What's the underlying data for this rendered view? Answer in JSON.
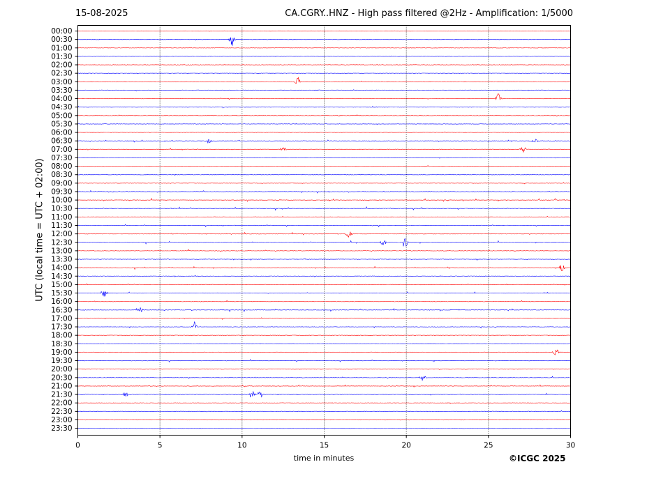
{
  "header": {
    "date": "15-08-2025",
    "title": "CA.CGRY..HNZ - High pass filtered @2Hz - Amplification: 1/5000"
  },
  "footer": {
    "copyright": "©ICGC 2025"
  },
  "chart_data": {
    "type": "line",
    "title": "CA.CGRY..HNZ - High pass filtered @2Hz - Amplification: 1/5000",
    "xlabel": "time in minutes",
    "ylabel": "UTC (local time = UTC + 02:00)",
    "xlim": [
      0,
      30
    ],
    "xticks": [
      "0",
      "5",
      "10",
      "15",
      "20",
      "25",
      "30"
    ],
    "x_gridlines": [
      5,
      10,
      15,
      20,
      25
    ],
    "grid": "vertical dotted",
    "row_colors": [
      "#ff0000",
      "#0000ff"
    ],
    "rows": [
      "00:00",
      "00:30",
      "01:00",
      "01:30",
      "02:00",
      "02:30",
      "03:00",
      "03:30",
      "04:00",
      "04:30",
      "05:00",
      "05:30",
      "06:00",
      "06:30",
      "07:00",
      "07:30",
      "08:00",
      "08:30",
      "09:00",
      "09:30",
      "10:00",
      "10:30",
      "11:00",
      "11:30",
      "12:00",
      "12:30",
      "13:00",
      "13:30",
      "14:00",
      "14:30",
      "15:00",
      "15:30",
      "16:00",
      "16:30",
      "17:00",
      "17:30",
      "18:00",
      "18:30",
      "19:00",
      "19:30",
      "20:00",
      "20:30",
      "21:00",
      "21:30",
      "22:00",
      "22:30",
      "23:00",
      "23:30"
    ],
    "row_activity": [
      0.05,
      0.1,
      0.05,
      0.05,
      0.05,
      0.05,
      0.08,
      0.15,
      0.1,
      0.15,
      0.05,
      0.1,
      0.1,
      0.3,
      0.25,
      0.05,
      0.05,
      0.05,
      0.1,
      0.3,
      0.5,
      0.6,
      0.15,
      0.5,
      0.3,
      0.5,
      0.3,
      0.3,
      0.45,
      0.2,
      0.3,
      0.2,
      0.25,
      0.5,
      0.25,
      0.2,
      0.05,
      0.1,
      0.05,
      0.25,
      0.05,
      0.3,
      0.3,
      0.2,
      0.05,
      0.05,
      0.02,
      0.02
    ],
    "events": [
      {
        "row": "00:30",
        "minute": 9.4,
        "amplitude": 10
      },
      {
        "row": "03:00",
        "minute": 13.4,
        "amplitude": 7
      },
      {
        "row": "04:00",
        "minute": 25.6,
        "amplitude": 8
      },
      {
        "row": "06:30",
        "minute": 8.0,
        "amplitude": 6
      },
      {
        "row": "06:30",
        "minute": 27.8,
        "amplitude": 5
      },
      {
        "row": "07:00",
        "minute": 27.1,
        "amplitude": 5
      },
      {
        "row": "07:00",
        "minute": 12.5,
        "amplitude": 4
      },
      {
        "row": "12:00",
        "minute": 16.5,
        "amplitude": 5
      },
      {
        "row": "12:30",
        "minute": 19.9,
        "amplitude": 9
      },
      {
        "row": "12:30",
        "minute": 18.6,
        "amplitude": 5
      },
      {
        "row": "14:00",
        "minute": 29.5,
        "amplitude": 6
      },
      {
        "row": "15:30",
        "minute": 1.6,
        "amplitude": 7
      },
      {
        "row": "16:30",
        "minute": 3.8,
        "amplitude": 5
      },
      {
        "row": "17:30",
        "minute": 7.1,
        "amplitude": 8
      },
      {
        "row": "19:00",
        "minute": 29.1,
        "amplitude": 6
      },
      {
        "row": "20:30",
        "minute": 21.0,
        "amplitude": 5
      },
      {
        "row": "21:30",
        "minute": 10.6,
        "amplitude": 7
      },
      {
        "row": "21:30",
        "minute": 11.1,
        "amplitude": 6
      },
      {
        "row": "21:30",
        "minute": 2.9,
        "amplitude": 4
      }
    ]
  }
}
